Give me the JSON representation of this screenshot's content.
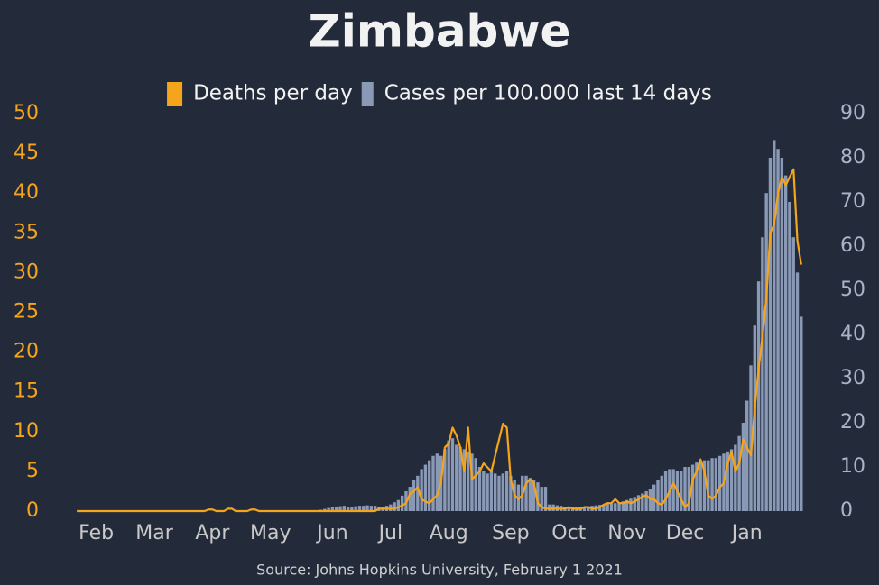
{
  "chart_data": {
    "type": "combo",
    "title": "Zimbabwe",
    "source": "Source: Johns Hopkins University, February 1 2021",
    "categories": [
      null,
      null,
      null,
      null,
      null,
      "Feb",
      null,
      null,
      null,
      null,
      null,
      null,
      null,
      null,
      null,
      null,
      null,
      null,
      null,
      null,
      "Mar",
      null,
      null,
      null,
      null,
      null,
      null,
      null,
      null,
      null,
      null,
      null,
      null,
      null,
      null,
      "Apr",
      null,
      null,
      null,
      null,
      null,
      null,
      null,
      null,
      null,
      null,
      null,
      null,
      null,
      null,
      "May",
      null,
      null,
      null,
      null,
      null,
      null,
      null,
      null,
      null,
      null,
      null,
      null,
      null,
      null,
      null,
      "Jun",
      null,
      null,
      null,
      null,
      null,
      null,
      null,
      null,
      null,
      null,
      null,
      null,
      null,
      null,
      "Jul",
      null,
      null,
      null,
      null,
      null,
      null,
      null,
      null,
      null,
      null,
      null,
      null,
      null,
      null,
      "Aug",
      null,
      null,
      null,
      null,
      null,
      null,
      null,
      null,
      null,
      null,
      null,
      null,
      null,
      null,
      null,
      "Sep",
      null,
      null,
      null,
      null,
      null,
      null,
      null,
      null,
      null,
      null,
      null,
      null,
      null,
      null,
      "Oct",
      null,
      null,
      null,
      null,
      null,
      null,
      null,
      null,
      null,
      null,
      null,
      null,
      null,
      null,
      "Nov",
      null,
      null,
      null,
      null,
      null,
      null,
      null,
      null,
      null,
      null,
      null,
      null,
      null,
      null,
      "Dec",
      null,
      null,
      null,
      null,
      null,
      null,
      null,
      null,
      null,
      null,
      null,
      null,
      null,
      null,
      null,
      "Jan",
      null,
      null,
      null,
      null,
      null,
      null,
      null,
      null,
      null,
      null,
      null,
      null,
      null,
      null
    ],
    "series": [
      {
        "name": "Deaths per day",
        "type": "line",
        "axis": "y",
        "color": "#f5a51c",
        "values": [
          0,
          0,
          0,
          0,
          0,
          0,
          0,
          0,
          0,
          0,
          0,
          0,
          0,
          0,
          0,
          0,
          0,
          0,
          0,
          0,
          0,
          0,
          0,
          0,
          0,
          0,
          0,
          0,
          0,
          0,
          0,
          0,
          0,
          0,
          0.2,
          0.2,
          0,
          0,
          0,
          0.3,
          0.3,
          0,
          0,
          0,
          0,
          0.2,
          0.2,
          0,
          0,
          0,
          0,
          0,
          0,
          0,
          0,
          0,
          0,
          0,
          0,
          0,
          0,
          0,
          0,
          0,
          0,
          0,
          0,
          0,
          0,
          0,
          0,
          0,
          0,
          0,
          0,
          0,
          0,
          0,
          0.3,
          0.3,
          0.3,
          0.3,
          0.3,
          0.5,
          0.7,
          1,
          2.2,
          2.5,
          3,
          1.5,
          1.2,
          1,
          1.5,
          2,
          3.5,
          8,
          8.5,
          10.5,
          9.5,
          8,
          5,
          10.5,
          4,
          4.5,
          5,
          6,
          5.5,
          5,
          7,
          9,
          11,
          10.5,
          4,
          2,
          1.5,
          2,
          3.5,
          4,
          3.5,
          1,
          0.5,
          0.3,
          0.3,
          0.3,
          0.3,
          0.3,
          0.3,
          0.5,
          0.3,
          0.3,
          0.3,
          0.5,
          0.5,
          0.3,
          0.3,
          0.5,
          0.8,
          1,
          1,
          1.5,
          1,
          1,
          1.2,
          1,
          1.2,
          1.5,
          1.8,
          2,
          1.5,
          1.5,
          1,
          0.8,
          1.5,
          2.5,
          3.5,
          2.5,
          1.5,
          0.5,
          1,
          4,
          5,
          6.5,
          5,
          2,
          1.5,
          2,
          3,
          3.5,
          6,
          7.5,
          5,
          6,
          9,
          8,
          7,
          13,
          18,
          22,
          27,
          35,
          36,
          40,
          42,
          41,
          42,
          43,
          34,
          31
        ]
      },
      {
        "name": "Cases per 100.000 last 14 days",
        "type": "bar",
        "axis": "y2",
        "color": "#8a9ab6",
        "values": [
          0,
          0,
          0,
          0,
          0,
          0,
          0,
          0,
          0,
          0,
          0,
          0,
          0,
          0,
          0,
          0,
          0,
          0,
          0,
          0,
          0,
          0,
          0,
          0,
          0,
          0,
          0,
          0,
          0,
          0,
          0,
          0,
          0,
          0,
          0,
          0,
          0,
          0,
          0,
          0,
          0,
          0,
          0,
          0,
          0,
          0,
          0,
          0,
          0,
          0,
          0,
          0,
          0,
          0,
          0,
          0,
          0,
          0,
          0,
          0,
          0,
          0,
          0,
          0.3,
          0.5,
          0.7,
          0.9,
          1.0,
          1.1,
          1.2,
          1.0,
          1.0,
          1.1,
          1.2,
          1.2,
          1.3,
          1.2,
          1.2,
          1.0,
          1.0,
          1.2,
          1.5,
          2,
          2.5,
          3.5,
          4.5,
          5.5,
          7,
          8,
          9.5,
          10.5,
          11.5,
          12.5,
          13,
          12.5,
          14,
          16,
          16.5,
          15,
          14.5,
          14,
          13.5,
          13,
          12,
          10,
          9,
          8.5,
          9,
          8.5,
          8,
          8.5,
          9,
          8,
          7,
          6,
          8,
          8,
          7.5,
          7,
          6.5,
          5.5,
          5.5,
          1.5,
          1.5,
          1.3,
          1.2,
          1,
          1,
          1,
          1,
          1,
          1,
          1.1,
          1.2,
          1.3,
          1.4,
          1.5,
          1.6,
          1.7,
          1.8,
          2,
          2.2,
          2.5,
          2.8,
          3.2,
          3.6,
          4,
          4.5,
          5,
          6,
          7,
          8,
          9,
          9.5,
          9.5,
          9,
          9,
          10,
          10,
          10.5,
          11,
          11,
          11.5,
          11.5,
          12,
          12,
          12.5,
          13,
          13.5,
          14,
          15,
          17,
          20,
          25,
          33,
          42,
          52,
          62,
          72,
          80,
          84,
          82,
          80,
          76,
          70,
          62,
          54,
          44
        ]
      }
    ],
    "ylim": [
      0,
      50
    ],
    "yticks": [
      0,
      5,
      10,
      15,
      20,
      25,
      30,
      35,
      40,
      45,
      50
    ],
    "y2lim": [
      0,
      90
    ],
    "y2ticks": [
      0,
      10,
      20,
      30,
      40,
      50,
      60,
      70,
      80,
      90
    ],
    "grid": false
  }
}
